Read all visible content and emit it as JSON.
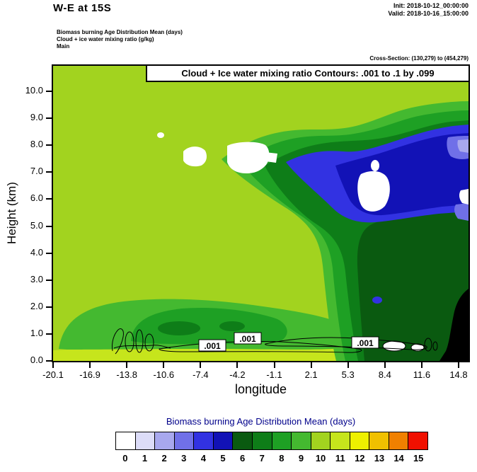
{
  "header": {
    "title": "W-E at 15S",
    "init": "Init: 2018-10-12_00:00:00",
    "valid": "Valid: 2018-10-16_15:00:00",
    "field_lines": [
      "Biomass burning Age Distribution Mean   (days)",
      "Cloud + ice water mixing ratio   (g/kg)",
      "Main"
    ],
    "cross_section": "Cross-Section: (130,279) to (454,279)"
  },
  "plot": {
    "overlay_title": "Cloud + Ice water mixing ratio Contours: .001 to .1 by .099",
    "xlabel": "longitude",
    "ylabel": "Height (km)",
    "x_tick_labels": [
      "-20.1",
      "-16.9",
      "-13.8",
      "-10.6",
      "-7.4",
      "-4.2",
      "-1.1",
      "2.1",
      "5.3",
      "8.4",
      "11.6",
      "14.8"
    ],
    "y_tick_labels": [
      "0.0",
      "1.0",
      "2.0",
      "3.0",
      "4.0",
      "5.0",
      "6.0",
      "7.0",
      "8.0",
      "9.0",
      "10.0"
    ],
    "contour_labels": [
      ".001",
      ".001",
      ".001"
    ]
  },
  "colorbar": {
    "title": "Biomass burning Age Distribution Mean  (days)",
    "tick_labels": [
      "0",
      "1",
      "2",
      "3",
      "4",
      "5",
      "6",
      "7",
      "8",
      "9",
      "10",
      "11",
      "12",
      "13",
      "14",
      "15"
    ],
    "colors": [
      "#ffffff",
      "#dcdcf8",
      "#a8a8ee",
      "#7070e8",
      "#3232e2",
      "#1212b6",
      "#0a5a10",
      "#0e7d18",
      "#1ea024",
      "#44b930",
      "#a2d31f",
      "#c6e51c",
      "#eef000",
      "#f0c000",
      "#f08000",
      "#f01000"
    ],
    "title_color": "#00008b"
  },
  "chart_data": {
    "type": "heatmap",
    "title": "W-E at 15S",
    "xlabel": "longitude",
    "ylabel": "Height (km)",
    "x_ticks": [
      -20.1,
      -16.9,
      -13.8,
      -10.6,
      -7.4,
      -4.2,
      -1.1,
      2.1,
      5.3,
      8.4,
      11.6,
      14.8
    ],
    "y_ticks": [
      0,
      1,
      2,
      3,
      4,
      5,
      6,
      7,
      8,
      9,
      10
    ],
    "xlim": [
      -20.1,
      15.6
    ],
    "ylim": [
      0,
      10.9
    ],
    "fill_variable": "Biomass burning Age Distribution Mean (days)",
    "levels": [
      0,
      1,
      2,
      3,
      4,
      5,
      6,
      7,
      8,
      9,
      10,
      11,
      12,
      13,
      14,
      15
    ],
    "palette": [
      "#ffffff",
      "#dcdcf8",
      "#a8a8ee",
      "#7070e8",
      "#3232e2",
      "#1212b6",
      "#0a5a10",
      "#0e7d18",
      "#1ea024",
      "#44b930",
      "#a2d31f",
      "#c6e51c",
      "#eef000",
      "#f0c000",
      "#f08000",
      "#f01000"
    ],
    "x_centers": [
      -18.5,
      -15.3,
      -12.2,
      -9.0,
      -5.8,
      -2.7,
      0.5,
      3.7,
      6.9,
      10.0,
      13.2,
      15.2
    ],
    "y_centers": [
      0.5,
      1.5,
      2.5,
      3.5,
      4.5,
      5.5,
      6.5,
      7.5,
      8.5,
      9.5
    ],
    "values_days": [
      [
        11,
        9,
        9,
        8,
        9,
        11,
        11,
        10,
        6,
        0,
        null,
        null
      ],
      [
        10,
        9,
        8,
        8,
        8,
        9,
        10,
        10,
        6,
        6,
        null,
        null
      ],
      [
        10,
        10,
        9,
        9,
        9,
        10,
        10,
        10,
        7,
        6,
        6,
        null
      ],
      [
        10,
        10,
        10,
        10,
        10,
        10,
        10,
        10,
        7,
        6,
        6,
        6
      ],
      [
        10,
        10,
        10,
        10,
        10,
        10,
        10,
        8,
        7,
        6,
        6,
        6
      ],
      [
        10,
        10,
        10,
        10,
        10,
        10,
        10,
        8,
        6,
        5,
        5,
        6
      ],
      [
        10,
        10,
        10,
        10,
        10,
        10,
        8,
        6,
        5,
        0,
        4,
        2
      ],
      [
        10,
        10,
        10,
        0,
        0,
        10,
        8,
        5,
        4,
        4,
        4,
        2
      ],
      [
        10,
        10,
        10,
        10,
        10,
        10,
        10,
        8,
        5,
        4,
        4,
        3
      ],
      [
        10,
        10,
        10,
        10,
        10,
        10,
        10,
        10,
        8,
        5,
        4,
        4
      ]
    ],
    "values_note": "approximate age (days) read from fill colors; rows bottom-to-top at y_centers; null = terrain (black mask) near 11.6E-14.8E below ~2.5 km",
    "contour_overlay": {
      "variable": "Cloud + Ice water mixing ratio (g/kg)",
      "levels": [
        0.001,
        0.1
      ],
      "interval": 0.099,
      "labels": [
        ".001"
      ],
      "location": "thin closed contours between ~0.3 and 1.2 km spanning about -16E to 10E"
    },
    "legend_position": "bottom"
  }
}
